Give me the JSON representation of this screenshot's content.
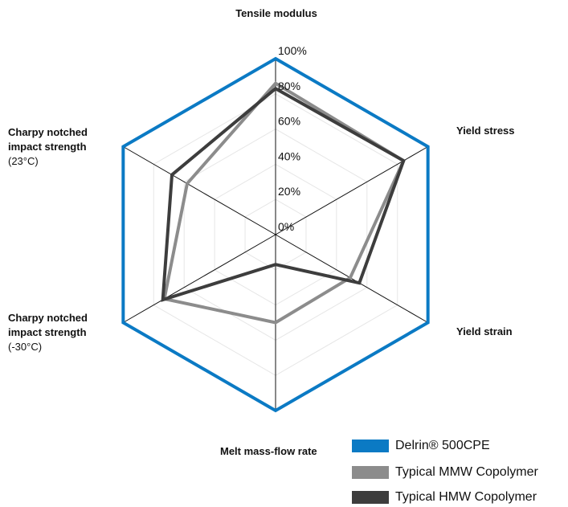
{
  "chart_data": {
    "type": "radar",
    "axes": [
      {
        "title": "Tensile modulus",
        "subtitle": ""
      },
      {
        "title": "Yield stress",
        "subtitle": ""
      },
      {
        "title": "Yield strain",
        "subtitle": ""
      },
      {
        "title": "Melt mass-flow rate",
        "subtitle": ""
      },
      {
        "title": "Charpy notched impact strength",
        "subtitle": "(-30°C)"
      },
      {
        "title": "Charpy notched impact strength",
        "subtitle": "(23°C)"
      }
    ],
    "radial_ticks": [
      "0%",
      "20%",
      "40%",
      "60%",
      "80%",
      "100%"
    ],
    "rlim": [
      0,
      100
    ],
    "legend_position": "bottom-right",
    "series": [
      {
        "name": "Delrin® 500CPE",
        "color": "#0b7ac4",
        "values": [
          100,
          100,
          100,
          100,
          100,
          100
        ]
      },
      {
        "name": "Typical MMW Copolymer",
        "color": "#8c8c8c",
        "values": [
          86,
          84,
          49,
          50,
          73,
          58
        ]
      },
      {
        "name": "Typical HMW Copolymer",
        "color": "#3d3d3d",
        "values": [
          83,
          84,
          55,
          17,
          74,
          68
        ]
      }
    ]
  }
}
